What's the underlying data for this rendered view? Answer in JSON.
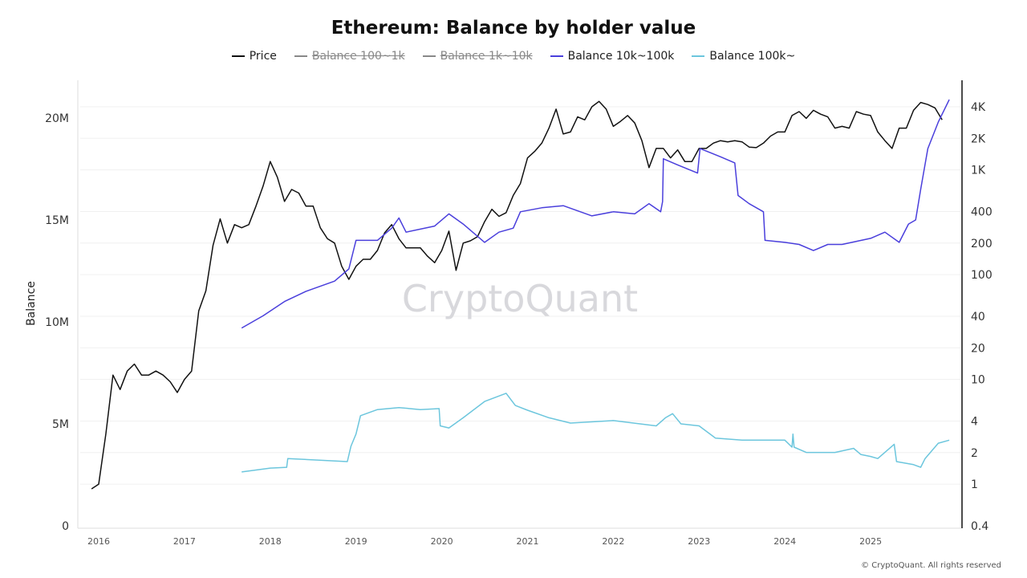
{
  "chart_data": {
    "type": "line",
    "title": "Ethereum: Balance by holder value",
    "ylabel": "Balance",
    "ylabel_right": "",
    "x_ticks": [
      "2016",
      "2017",
      "2018",
      "2019",
      "2020",
      "2021",
      "2022",
      "2023",
      "2024",
      "2025"
    ],
    "y_left_ticks": [
      {
        "v": 0,
        "label": "0"
      },
      {
        "v": 5,
        "label": "5M"
      },
      {
        "v": 10,
        "label": "10M"
      },
      {
        "v": 15,
        "label": "15M"
      },
      {
        "v": 20,
        "label": "20M"
      }
    ],
    "y_left_range_millions": [
      0,
      22
    ],
    "y_right_scale": "log",
    "y_right_ticks": [
      {
        "v": 0.4,
        "label": "0.4"
      },
      {
        "v": 1,
        "label": "1"
      },
      {
        "v": 2,
        "label": "2"
      },
      {
        "v": 4,
        "label": "4"
      },
      {
        "v": 10,
        "label": "10"
      },
      {
        "v": 20,
        "label": "20"
      },
      {
        "v": 40,
        "label": "40"
      },
      {
        "v": 100,
        "label": "100"
      },
      {
        "v": 200,
        "label": "200"
      },
      {
        "v": 400,
        "label": "400"
      },
      {
        "v": 1000,
        "label": "1K"
      },
      {
        "v": 2000,
        "label": "2K"
      },
      {
        "v": 4000,
        "label": "4K"
      }
    ],
    "y_right_range": [
      0.4,
      5500
    ],
    "grid": true,
    "legend_position": "top",
    "watermark": "CryptoQuant",
    "legend": [
      {
        "name": "Price",
        "color": "#111111",
        "enabled": true
      },
      {
        "name": "Balance 100~1k",
        "color": "#888888",
        "enabled": false
      },
      {
        "name": "Balance 1k~10k",
        "color": "#888888",
        "enabled": false
      },
      {
        "name": "Balance 10k~100k",
        "color": "#4a3fdc",
        "enabled": true
      },
      {
        "name": "Balance 100k~",
        "color": "#6cc6dd",
        "enabled": true
      }
    ],
    "series": [
      {
        "name": "Price",
        "axis": "right",
        "color": "#111111",
        "points": [
          [
            "2015-12-01",
            0.9
          ],
          [
            "2016-01-01",
            1.0
          ],
          [
            "2016-02-01",
            3
          ],
          [
            "2016-03-01",
            11
          ],
          [
            "2016-04-01",
            8
          ],
          [
            "2016-05-01",
            12
          ],
          [
            "2016-06-01",
            14
          ],
          [
            "2016-07-01",
            11
          ],
          [
            "2016-08-01",
            11
          ],
          [
            "2016-09-01",
            12
          ],
          [
            "2016-10-01",
            11
          ],
          [
            "2016-11-01",
            9.5
          ],
          [
            "2016-12-01",
            7.5
          ],
          [
            "2017-01-01",
            10
          ],
          [
            "2017-02-01",
            12
          ],
          [
            "2017-03-01",
            45
          ],
          [
            "2017-04-01",
            70
          ],
          [
            "2017-05-01",
            190
          ],
          [
            "2017-06-01",
            340
          ],
          [
            "2017-07-01",
            200
          ],
          [
            "2017-08-01",
            300
          ],
          [
            "2017-09-01",
            280
          ],
          [
            "2017-10-01",
            300
          ],
          [
            "2017-11-01",
            450
          ],
          [
            "2017-12-01",
            700
          ],
          [
            "2018-01-01",
            1200
          ],
          [
            "2018-02-01",
            850
          ],
          [
            "2018-03-01",
            500
          ],
          [
            "2018-04-01",
            650
          ],
          [
            "2018-05-01",
            600
          ],
          [
            "2018-06-01",
            450
          ],
          [
            "2018-07-01",
            450
          ],
          [
            "2018-08-01",
            280
          ],
          [
            "2018-09-01",
            220
          ],
          [
            "2018-10-01",
            200
          ],
          [
            "2018-11-01",
            120
          ],
          [
            "2018-12-01",
            90
          ],
          [
            "2019-01-01",
            120
          ],
          [
            "2019-02-01",
            140
          ],
          [
            "2019-03-01",
            140
          ],
          [
            "2019-04-01",
            170
          ],
          [
            "2019-05-01",
            250
          ],
          [
            "2019-06-01",
            300
          ],
          [
            "2019-07-01",
            220
          ],
          [
            "2019-08-01",
            180
          ],
          [
            "2019-09-01",
            180
          ],
          [
            "2019-10-01",
            180
          ],
          [
            "2019-11-01",
            150
          ],
          [
            "2019-12-01",
            130
          ],
          [
            "2020-01-01",
            170
          ],
          [
            "2020-02-01",
            260
          ],
          [
            "2020-03-01",
            110
          ],
          [
            "2020-04-01",
            200
          ],
          [
            "2020-05-01",
            210
          ],
          [
            "2020-06-01",
            230
          ],
          [
            "2020-07-01",
            320
          ],
          [
            "2020-08-01",
            420
          ],
          [
            "2020-09-01",
            360
          ],
          [
            "2020-10-01",
            390
          ],
          [
            "2020-11-01",
            570
          ],
          [
            "2020-12-01",
            740
          ],
          [
            "2021-01-01",
            1300
          ],
          [
            "2021-02-01",
            1500
          ],
          [
            "2021-03-01",
            1800
          ],
          [
            "2021-04-01",
            2500
          ],
          [
            "2021-05-01",
            3800
          ],
          [
            "2021-06-01",
            2200
          ],
          [
            "2021-07-01",
            2300
          ],
          [
            "2021-08-01",
            3200
          ],
          [
            "2021-09-01",
            3000
          ],
          [
            "2021-10-01",
            4000
          ],
          [
            "2021-11-01",
            4500
          ],
          [
            "2021-12-01",
            3800
          ],
          [
            "2022-01-01",
            2600
          ],
          [
            "2022-02-01",
            2900
          ],
          [
            "2022-03-01",
            3300
          ],
          [
            "2022-04-01",
            2800
          ],
          [
            "2022-05-01",
            1900
          ],
          [
            "2022-06-01",
            1050
          ],
          [
            "2022-07-01",
            1600
          ],
          [
            "2022-08-01",
            1600
          ],
          [
            "2022-09-01",
            1300
          ],
          [
            "2022-10-01",
            1550
          ],
          [
            "2022-11-01",
            1200
          ],
          [
            "2022-12-01",
            1200
          ],
          [
            "2023-01-01",
            1600
          ],
          [
            "2023-02-01",
            1600
          ],
          [
            "2023-03-01",
            1800
          ],
          [
            "2023-04-01",
            1900
          ],
          [
            "2023-05-01",
            1850
          ],
          [
            "2023-06-01",
            1900
          ],
          [
            "2023-07-01",
            1850
          ],
          [
            "2023-08-01",
            1650
          ],
          [
            "2023-09-01",
            1630
          ],
          [
            "2023-10-01",
            1800
          ],
          [
            "2023-11-01",
            2100
          ],
          [
            "2023-12-01",
            2300
          ],
          [
            "2024-01-01",
            2300
          ],
          [
            "2024-02-01",
            3300
          ],
          [
            "2024-03-01",
            3600
          ],
          [
            "2024-04-01",
            3100
          ],
          [
            "2024-05-01",
            3700
          ],
          [
            "2024-06-01",
            3400
          ],
          [
            "2024-07-01",
            3200
          ],
          [
            "2024-08-01",
            2500
          ],
          [
            "2024-09-01",
            2600
          ],
          [
            "2024-10-01",
            2500
          ],
          [
            "2024-11-01",
            3600
          ],
          [
            "2024-12-01",
            3400
          ],
          [
            "2025-01-01",
            3300
          ],
          [
            "2025-02-01",
            2300
          ],
          [
            "2025-03-01",
            1900
          ],
          [
            "2025-04-01",
            1600
          ],
          [
            "2025-05-01",
            2500
          ],
          [
            "2025-06-01",
            2500
          ],
          [
            "2025-07-01",
            3700
          ],
          [
            "2025-08-01",
            4400
          ],
          [
            "2025-09-01",
            4200
          ],
          [
            "2025-10-01",
            3900
          ],
          [
            "2025-11-01",
            3000
          ]
        ]
      },
      {
        "name": "Balance 10k~100k",
        "axis": "left",
        "unit": "M",
        "color": "#4a3fdc",
        "points": [
          [
            "2017-09-01",
            9.7
          ],
          [
            "2017-12-01",
            10.3
          ],
          [
            "2018-03-01",
            11.0
          ],
          [
            "2018-06-01",
            11.5
          ],
          [
            "2018-10-01",
            12.0
          ],
          [
            "2018-12-01",
            12.6
          ],
          [
            "2019-01-01",
            14.0
          ],
          [
            "2019-04-01",
            14.0
          ],
          [
            "2019-06-01",
            14.6
          ],
          [
            "2019-07-01",
            15.1
          ],
          [
            "2019-08-01",
            14.4
          ],
          [
            "2019-12-01",
            14.7
          ],
          [
            "2020-02-01",
            15.3
          ],
          [
            "2020-04-01",
            14.8
          ],
          [
            "2020-06-01",
            14.2
          ],
          [
            "2020-07-01",
            13.9
          ],
          [
            "2020-09-01",
            14.4
          ],
          [
            "2020-11-01",
            14.6
          ],
          [
            "2020-12-01",
            15.4
          ],
          [
            "2021-03-01",
            15.6
          ],
          [
            "2021-06-01",
            15.7
          ],
          [
            "2021-10-01",
            15.2
          ],
          [
            "2022-01-01",
            15.4
          ],
          [
            "2022-04-01",
            15.3
          ],
          [
            "2022-06-01",
            15.8
          ],
          [
            "2022-07-20",
            15.4
          ],
          [
            "2022-07-28",
            15.9
          ],
          [
            "2022-08-01",
            18.0
          ],
          [
            "2022-10-01",
            17.7
          ],
          [
            "2022-12-25",
            17.3
          ],
          [
            "2023-01-05",
            18.5
          ],
          [
            "2023-04-01",
            18.1
          ],
          [
            "2023-06-01",
            17.8
          ],
          [
            "2023-06-15",
            16.2
          ],
          [
            "2023-08-01",
            15.8
          ],
          [
            "2023-10-01",
            15.4
          ],
          [
            "2023-10-08",
            14.0
          ],
          [
            "2024-01-01",
            13.9
          ],
          [
            "2024-03-01",
            13.8
          ],
          [
            "2024-05-01",
            13.5
          ],
          [
            "2024-07-01",
            13.8
          ],
          [
            "2024-09-01",
            13.8
          ],
          [
            "2025-01-01",
            14.1
          ],
          [
            "2025-03-01",
            14.4
          ],
          [
            "2025-05-01",
            13.9
          ],
          [
            "2025-06-10",
            14.8
          ],
          [
            "2025-07-10",
            15.0
          ],
          [
            "2025-08-01",
            16.5
          ],
          [
            "2025-09-01",
            18.5
          ],
          [
            "2025-10-15",
            19.8
          ],
          [
            "2025-12-01",
            20.9
          ]
        ]
      },
      {
        "name": "Balance 100k~",
        "axis": "left",
        "unit": "M",
        "color": "#6cc6dd",
        "points": [
          [
            "2017-09-01",
            2.64
          ],
          [
            "2018-01-01",
            2.83
          ],
          [
            "2018-03-10",
            2.87
          ],
          [
            "2018-03-15",
            3.3
          ],
          [
            "2018-11-25",
            3.15
          ],
          [
            "2018-12-10",
            3.9
          ],
          [
            "2019-01-01",
            4.5
          ],
          [
            "2019-01-20",
            5.4
          ],
          [
            "2019-04-01",
            5.7
          ],
          [
            "2019-07-01",
            5.8
          ],
          [
            "2019-10-01",
            5.7
          ],
          [
            "2019-12-20",
            5.75
          ],
          [
            "2019-12-25",
            4.9
          ],
          [
            "2020-02-01",
            4.8
          ],
          [
            "2020-04-01",
            5.3
          ],
          [
            "2020-07-01",
            6.1
          ],
          [
            "2020-10-01",
            6.5
          ],
          [
            "2020-11-10",
            5.9
          ],
          [
            "2021-01-01",
            5.67
          ],
          [
            "2021-04-01",
            5.3
          ],
          [
            "2021-07-01",
            5.04
          ],
          [
            "2022-01-01",
            5.16
          ],
          [
            "2022-07-01",
            4.9
          ],
          [
            "2022-08-10",
            5.3
          ],
          [
            "2022-09-10",
            5.5
          ],
          [
            "2022-10-15",
            5.0
          ],
          [
            "2023-01-01",
            4.9
          ],
          [
            "2023-03-10",
            4.3
          ],
          [
            "2023-07-01",
            4.2
          ],
          [
            "2024-01-01",
            4.2
          ],
          [
            "2024-02-01",
            3.86
          ],
          [
            "2024-02-05",
            4.5
          ],
          [
            "2024-02-10",
            3.86
          ],
          [
            "2024-04-01",
            3.6
          ],
          [
            "2024-08-01",
            3.6
          ],
          [
            "2024-10-20",
            3.8
          ],
          [
            "2024-11-20",
            3.5
          ],
          [
            "2025-01-01",
            3.4
          ],
          [
            "2025-02-01",
            3.3
          ],
          [
            "2025-04-10",
            4.0
          ],
          [
            "2025-04-20",
            3.15
          ],
          [
            "2025-07-01",
            3.0
          ],
          [
            "2025-08-01",
            2.87
          ],
          [
            "2025-08-20",
            3.3
          ],
          [
            "2025-10-15",
            4.05
          ],
          [
            "2025-12-01",
            4.2
          ]
        ]
      }
    ]
  },
  "footer": "© CryptoQuant. All rights reserved"
}
